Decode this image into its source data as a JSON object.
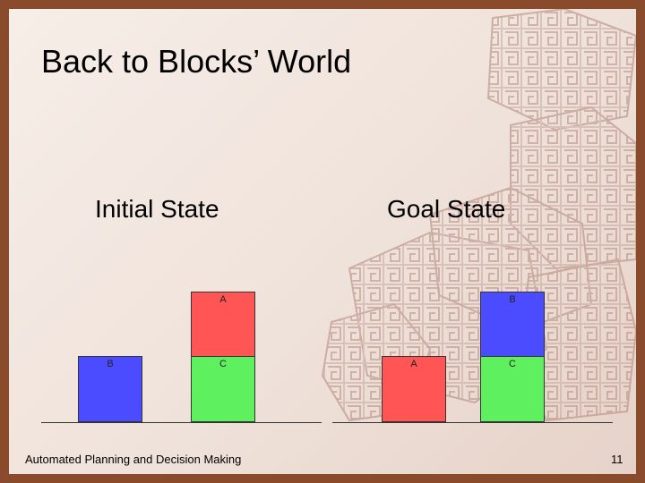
{
  "slide": {
    "title": "Back to Blocks’ World",
    "footer": "Automated Planning and Decision Making",
    "page_number": "11"
  },
  "initial_state": {
    "heading": "Initial State",
    "blocks": {
      "B": {
        "label": "B",
        "color": "#4b4bff"
      },
      "A": {
        "label": "A",
        "color": "#ff5555"
      },
      "C": {
        "label": "C",
        "color": "#5ef05e"
      }
    }
  },
  "goal_state": {
    "heading": "Goal State",
    "blocks": {
      "B": {
        "label": "B",
        "color": "#4b4bff"
      },
      "A": {
        "label": "A",
        "color": "#ff5555"
      },
      "C": {
        "label": "C",
        "color": "#5ef05e"
      }
    }
  },
  "background": {
    "frame_color": "#8a4a2c",
    "decoration": "rubiks-cube-pattern"
  }
}
